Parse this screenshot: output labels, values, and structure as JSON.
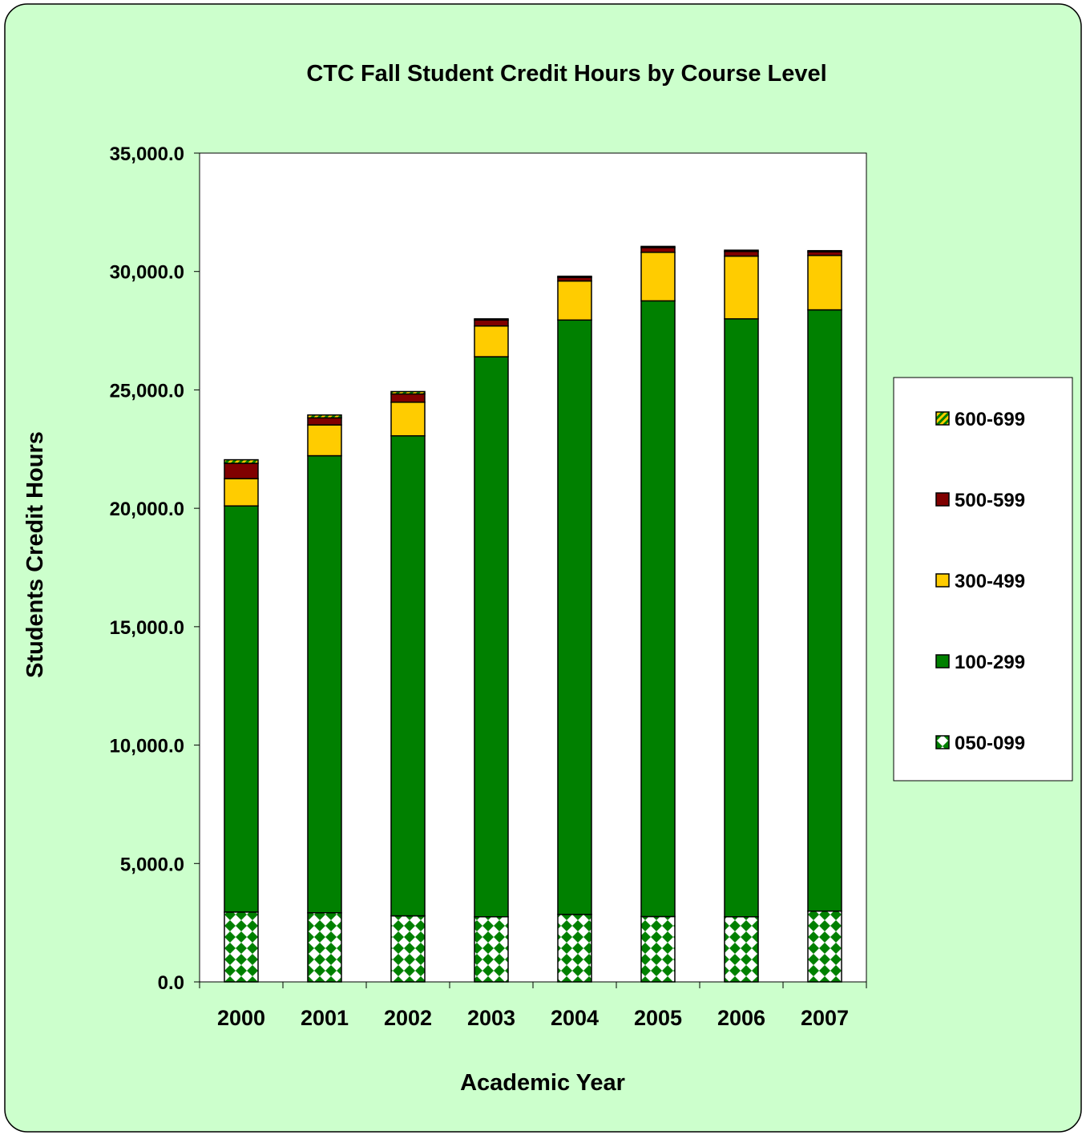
{
  "chart_data": {
    "type": "bar",
    "stacked": true,
    "title": "CTC Fall Student Credit Hours by Course Level",
    "xlabel": "Academic Year",
    "ylabel": "Students Credit Hours",
    "ylim": [
      0,
      35000
    ],
    "yticks": [
      "0.0",
      "5,000.0",
      "10,000.0",
      "15,000.0",
      "20,000.0",
      "25,000.0",
      "30,000.0",
      "35,000.0"
    ],
    "categories": [
      "2000",
      "2001",
      "2002",
      "2003",
      "2004",
      "2005",
      "2006",
      "2007"
    ],
    "grid": false,
    "legend_position": "right",
    "series": [
      {
        "name": "050-099",
        "color": "#008000",
        "pattern": "diamond-checker",
        "values": [
          2950,
          2920,
          2790,
          2750,
          2850,
          2760,
          2750,
          2990
        ]
      },
      {
        "name": "100-299",
        "color": "#008000",
        "values": [
          17150,
          19300,
          20270,
          23650,
          25100,
          26000,
          25250,
          25390
        ]
      },
      {
        "name": "300-499",
        "color": "#FFCC00",
        "values": [
          1150,
          1300,
          1420,
          1300,
          1650,
          2050,
          2650,
          2300
        ]
      },
      {
        "name": "500-599",
        "color": "#800000",
        "values": [
          650,
          300,
          350,
          250,
          150,
          200,
          200,
          150
        ]
      },
      {
        "name": "600-699",
        "color": "#99CC00",
        "pattern": "diagonal-stripe",
        "values": [
          150,
          120,
          100,
          50,
          50,
          50,
          50,
          50
        ]
      }
    ],
    "legend_order": [
      "600-699",
      "500-599",
      "300-499",
      "100-299",
      "050-099"
    ]
  },
  "colors": {
    "frame_background": "#CCFFCC",
    "plot_background": "#FFFFFF",
    "outline": "#000000"
  }
}
